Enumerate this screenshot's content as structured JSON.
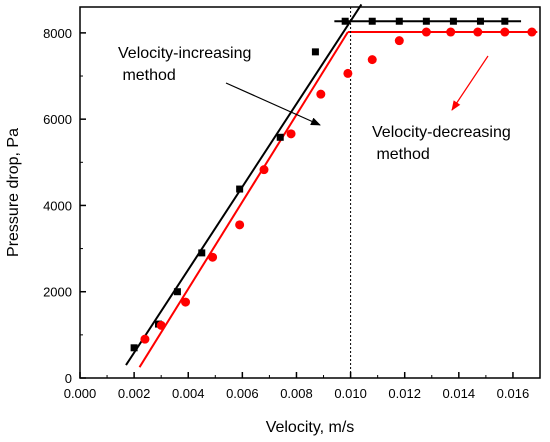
{
  "chart_data": {
    "type": "scatter",
    "xlabel": "Velocity, m/s",
    "ylabel": "Pressure drop, Pa",
    "xlim": [
      0.0,
      0.017
    ],
    "ylim": [
      0,
      8600
    ],
    "xticks": [
      0.0,
      0.002,
      0.004,
      0.006,
      0.008,
      0.01,
      0.012,
      0.014,
      0.016
    ],
    "xtick_labels": [
      "0.000",
      "0.002",
      "0.004",
      "0.006",
      "0.008",
      "0.010",
      "0.012",
      "0.014",
      "0.016"
    ],
    "yticks": [
      0,
      2000,
      4000,
      6000,
      8000
    ],
    "ytick_labels": [
      "0",
      "2000",
      "4000",
      "6000",
      "8000"
    ],
    "grid": false,
    "reference_line": {
      "x": 0.01,
      "style": "dotted"
    },
    "series": [
      {
        "name": "Velocity-increasing method",
        "marker": "square",
        "color": "#000000",
        "x": [
          0.002,
          0.0029,
          0.0036,
          0.0045,
          0.0059,
          0.0074,
          0.0087,
          0.0098,
          0.0108,
          0.0118,
          0.0128,
          0.0138,
          0.0148,
          0.0157
        ],
        "y": [
          700,
          1250,
          2000,
          2900,
          4380,
          5580,
          7560,
          8270,
          8270,
          8270,
          8270,
          8270,
          8270,
          8270
        ]
      },
      {
        "name": "Velocity-decreasing method",
        "marker": "circle",
        "color": "#ff0000",
        "x": [
          0.0024,
          0.003,
          0.0039,
          0.0049,
          0.0059,
          0.0068,
          0.0078,
          0.0089,
          0.0099,
          0.0108,
          0.0118,
          0.0128,
          0.0137,
          0.0147,
          0.0157,
          0.0167
        ],
        "y": [
          900,
          1220,
          1760,
          2800,
          3550,
          4830,
          5660,
          6580,
          7060,
          7380,
          7820,
          8020,
          8020,
          8020,
          8020,
          8020
        ]
      }
    ],
    "fit_lines": [
      {
        "color": "#000000",
        "points": [
          [
            0.0017,
            300
          ],
          [
            0.0104,
            8660
          ]
        ]
      },
      {
        "color": "#000000",
        "points": [
          [
            0.0094,
            8270
          ],
          [
            0.0163,
            8270
          ]
        ]
      },
      {
        "color": "#ff0000",
        "points": [
          [
            0.0022,
            250
          ],
          [
            0.0099,
            8020
          ]
        ]
      },
      {
        "color": "#ff0000",
        "points": [
          [
            0.0099,
            8020
          ],
          [
            0.0169,
            8020
          ]
        ]
      }
    ],
    "annotations": [
      {
        "lines": [
          "Velocity-increasing",
          " method"
        ],
        "series": 0
      },
      {
        "lines": [
          "Velocity-decreasing",
          " method"
        ],
        "series": 1
      }
    ]
  }
}
